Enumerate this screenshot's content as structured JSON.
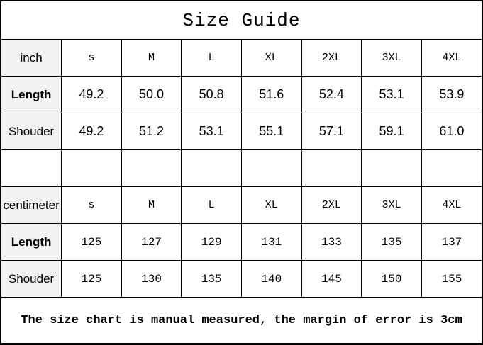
{
  "title": "Size Guide",
  "colors": {
    "label_column_bg": "#f2f2f2",
    "border": "#000000",
    "text": "#000000",
    "background": "#ffffff"
  },
  "table": {
    "sections": [
      {
        "unit": "inch",
        "sizes": [
          "s",
          "M",
          "L",
          "XL",
          "2XL",
          "3XL",
          "4XL"
        ],
        "rows": [
          {
            "label": "Length",
            "values": [
              "49.2",
              "50.0",
              "50.8",
              "51.6",
              "52.4",
              "53.1",
              "53.9"
            ]
          },
          {
            "label": "Shouder",
            "values": [
              "49.2",
              "51.2",
              "53.1",
              "55.1",
              "57.1",
              "59.1",
              "61.0"
            ]
          }
        ]
      },
      {
        "unit": "centimeter",
        "sizes": [
          "s",
          "M",
          "L",
          "XL",
          "2XL",
          "3XL",
          "4XL"
        ],
        "rows": [
          {
            "label": "Length",
            "values": [
              "125",
              "127",
              "129",
              "131",
              "133",
              "135",
              "137"
            ]
          },
          {
            "label": "Shouder",
            "values": [
              "125",
              "130",
              "135",
              "140",
              "145",
              "150",
              "155"
            ]
          }
        ]
      }
    ]
  },
  "footer": {
    "note": "The size chart is manual measured, the margin of error is 3cm"
  }
}
